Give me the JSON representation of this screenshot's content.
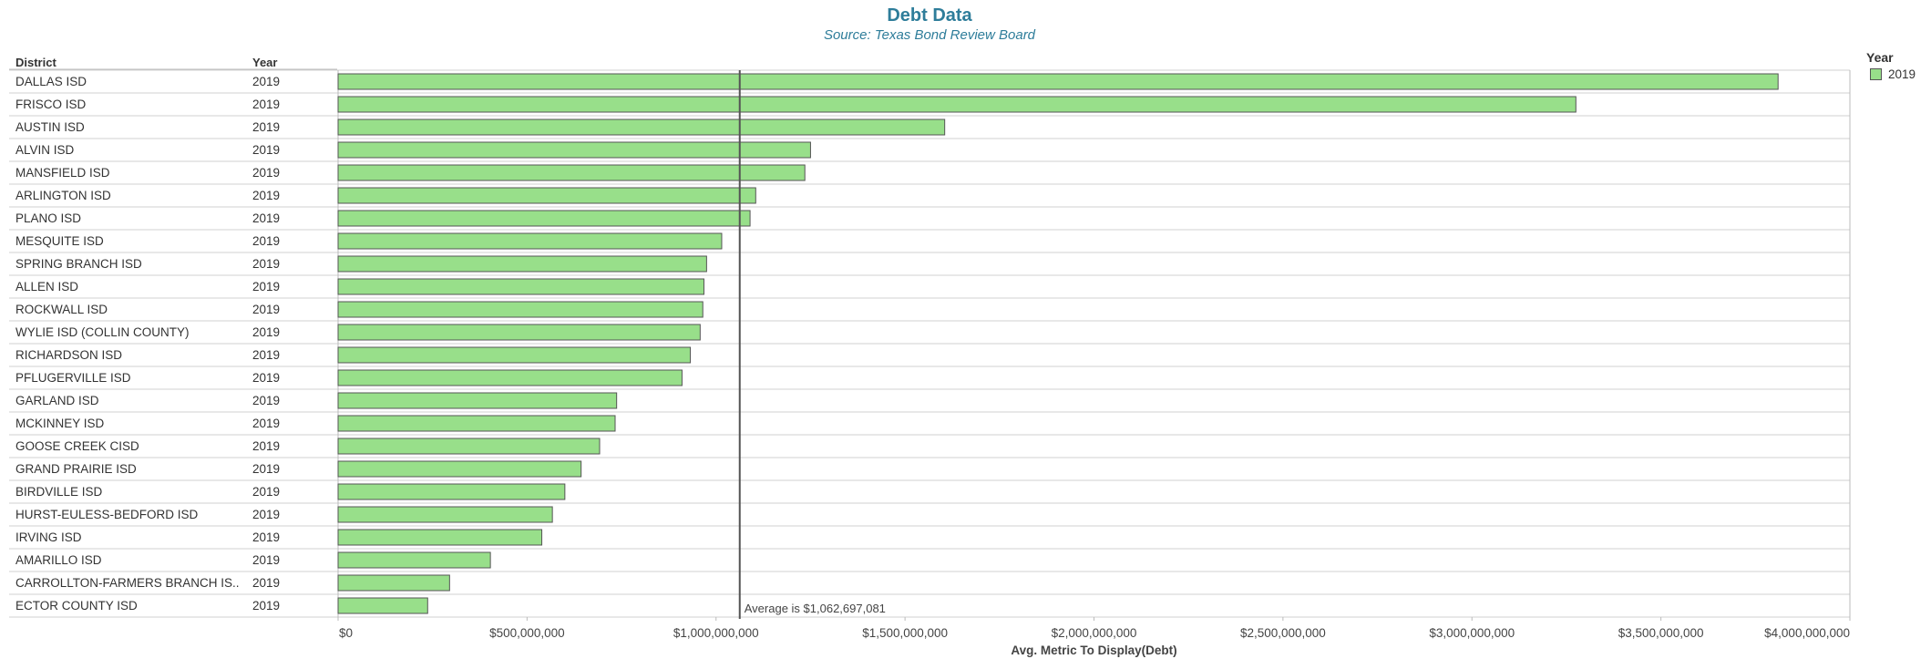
{
  "title": "Debt Data",
  "subtitle": "Source: Texas Bond Review Board",
  "headers": {
    "district": "District",
    "year": "Year"
  },
  "legend": {
    "title": "Year",
    "items": [
      {
        "label": "2019",
        "color": "#98df8a"
      }
    ]
  },
  "chart_data": {
    "type": "bar",
    "orientation": "horizontal",
    "categories": [
      "DALLAS ISD",
      "FRISCO ISD",
      "AUSTIN ISD",
      "ALVIN ISD",
      "MANSFIELD ISD",
      "ARLINGTON ISD",
      "PLANO ISD",
      "MESQUITE ISD",
      "SPRING BRANCH ISD",
      "ALLEN ISD",
      "ROCKWALL ISD",
      "WYLIE ISD (COLLIN COUNTY)",
      "RICHARDSON ISD",
      "PFLUGERVILLE ISD",
      "GARLAND ISD",
      "MCKINNEY ISD",
      "GOOSE CREEK CISD",
      "GRAND PRAIRIE ISD",
      "BIRDVILLE ISD",
      "HURST-EULESS-BEDFORD ISD",
      "IRVING ISD",
      "AMARILLO ISD",
      "CARROLLTON-FARMERS BRANCH IS..",
      "ECTOR COUNTY ISD"
    ],
    "years": [
      "2019",
      "2019",
      "2019",
      "2019",
      "2019",
      "2019",
      "2019",
      "2019",
      "2019",
      "2019",
      "2019",
      "2019",
      "2019",
      "2019",
      "2019",
      "2019",
      "2019",
      "2019",
      "2019",
      "2019",
      "2019",
      "2019",
      "2019",
      "2019"
    ],
    "series": [
      {
        "name": "2019",
        "values": [
          3810000000,
          3275000000,
          1605000000,
          1250000000,
          1235000000,
          1105000000,
          1090000000,
          1015000000,
          975000000,
          968000000,
          965000000,
          958000000,
          932000000,
          910000000,
          737000000,
          733000000,
          692000000,
          643000000,
          600000000,
          567000000,
          539000000,
          403000000,
          295000000,
          237000000
        ]
      }
    ],
    "x_ticks": [
      0,
      500000000,
      1000000000,
      1500000000,
      2000000000,
      2500000000,
      3000000000,
      3500000000,
      4000000000
    ],
    "x_tick_labels": [
      "$0",
      "$500,000,000",
      "$1,000,000,000",
      "$1,500,000,000",
      "$2,000,000,000",
      "$2,500,000,000",
      "$3,000,000,000",
      "$3,500,000,000",
      "$4,000,000,000"
    ],
    "xlim": [
      0,
      4000000000
    ],
    "xlabel": "Avg. Metric To Display(Debt)",
    "ylabel": "",
    "reference_line": {
      "value": 1062697081,
      "label": "Average is $1,062,697,081"
    },
    "colors": {
      "bar": "#98df8a",
      "bar_border": "#555555",
      "gridline": "#d0d0d0",
      "reference": "#555555"
    }
  }
}
